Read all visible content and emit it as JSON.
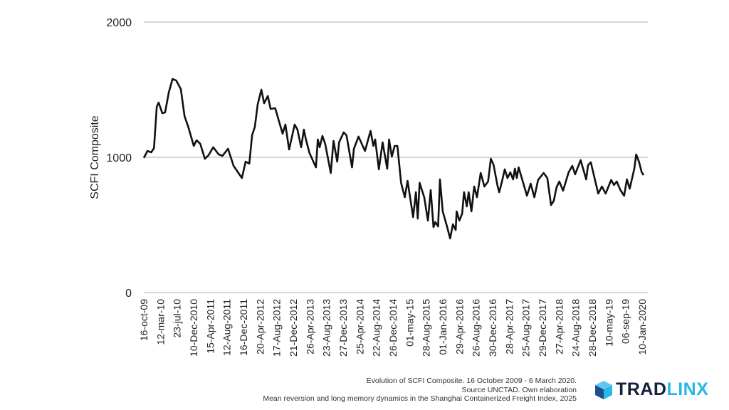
{
  "chart_data": {
    "type": "line",
    "title": "",
    "xlabel": "",
    "ylabel": "SCFI Composite",
    "ylim": [
      0,
      2000
    ],
    "yticks": [
      0,
      1000,
      2000
    ],
    "grid": true,
    "x_unit": "weeks since 16-oct-09",
    "xlim": [
      0,
      540
    ],
    "xtick_labels": [
      "16-oct-09",
      "12-mar-10",
      "23-jul-10",
      "10-Dec-2010",
      "15-Apr-2011",
      "12-Aug-2011",
      "16-Dec-2011",
      "20-Apr-2012",
      "17-Aug-2012",
      "21-Dec-2012",
      "26-Apr-2013",
      "23-Aug-2013",
      "27-Dec-2013",
      "25-Apr-2014",
      "22-Aug-2014",
      "26-Dec-2014",
      "01-may-15",
      "28-Aug-2015",
      "01-Jan-2016",
      "29-Apr-2016",
      "26-Aug-2016",
      "30-Dec-2016",
      "28-Apr-2017",
      "25-Aug-2017",
      "29-Dec-2017",
      "27-Apr-2018",
      "24-Aug-2018",
      "28-Dec-2018",
      "10-may-19",
      "06-sep-19",
      "10-Jan-2020"
    ],
    "series": [
      {
        "name": "SCFI Composite",
        "color": "#111111",
        "x": [
          0,
          4,
          8,
          11,
          14,
          16,
          20,
          23,
          27,
          31,
          35,
          40,
          44,
          48,
          54,
          57,
          61,
          66,
          70,
          75,
          81,
          85,
          91,
          97,
          106,
          110,
          114,
          117,
          120,
          123,
          127,
          130,
          134,
          137,
          142,
          146,
          150,
          153,
          157,
          163,
          166,
          170,
          173,
          175,
          179,
          186,
          188,
          190,
          193,
          196,
          202,
          205,
          209,
          211,
          216,
          219,
          225,
          227,
          232,
          239,
          242,
          245,
          248,
          250,
          254,
          258,
          263,
          265,
          268,
          271,
          274,
          278,
          282,
          285,
          291,
          294,
          296,
          298,
          303,
          307,
          310,
          313,
          315,
          318,
          320,
          323,
          328,
          331,
          334,
          337,
          338,
          341,
          344,
          346,
          349,
          351,
          354,
          357,
          360,
          364,
          368,
          372,
          375,
          378,
          382,
          384,
          387,
          390,
          393,
          396,
          399,
          401,
          403,
          405,
          414,
          418,
          422,
          426,
          432,
          436,
          440,
          443,
          446,
          449,
          453,
          456,
          459,
          463,
          466,
          472,
          478,
          480,
          483,
          491,
          495,
          499,
          505,
          508,
          511,
          515,
          519,
          522,
          525,
          530,
          532,
          535,
          538,
          540
        ],
        "y": [
          995,
          1047,
          1037,
          1068,
          1374,
          1405,
          1326,
          1332,
          1479,
          1579,
          1568,
          1505,
          1305,
          1226,
          1084,
          1126,
          1100,
          989,
          1016,
          1074,
          1021,
          1011,
          1063,
          937,
          847,
          968,
          953,
          1163,
          1226,
          1389,
          1500,
          1400,
          1453,
          1358,
          1363,
          1268,
          1174,
          1242,
          1058,
          1242,
          1205,
          1074,
          1205,
          1137,
          1032,
          926,
          1132,
          1074,
          1158,
          1100,
          884,
          1121,
          968,
          1111,
          1184,
          1163,
          926,
          1063,
          1153,
          1047,
          1121,
          1195,
          1084,
          1132,
          911,
          1111,
          916,
          1132,
          1005,
          1084,
          1084,
          811,
          705,
          826,
          558,
          742,
          547,
          811,
          705,
          532,
          758,
          484,
          521,
          489,
          837,
          600,
          479,
          400,
          505,
          463,
          600,
          532,
          584,
          742,
          637,
          742,
          600,
          784,
          705,
          884,
          784,
          821,
          989,
          942,
          795,
          742,
          821,
          911,
          847,
          889,
          837,
          916,
          847,
          926,
          716,
          805,
          705,
          832,
          884,
          847,
          647,
          679,
          779,
          821,
          753,
          821,
          889,
          937,
          874,
          979,
          837,
          942,
          963,
          732,
          784,
          732,
          832,
          795,
          821,
          758,
          716,
          837,
          768,
          916,
          1021,
          968,
          889,
          868
        ]
      }
    ]
  },
  "caption": {
    "line1": "Evolution of SCFI Composite. 16 October 2009 - 6 March 2020.",
    "line2": "Source UNCTAD. Own elaboration",
    "line3": "Mean reversion and long memory dynamics in the Shanghai Containerized Freight Index, 2025"
  },
  "logo": {
    "part1": "TRAD",
    "part2": "LINX",
    "icon": "cube-icon",
    "color_dark": "#14213d",
    "color_light": "#29b6e8"
  }
}
